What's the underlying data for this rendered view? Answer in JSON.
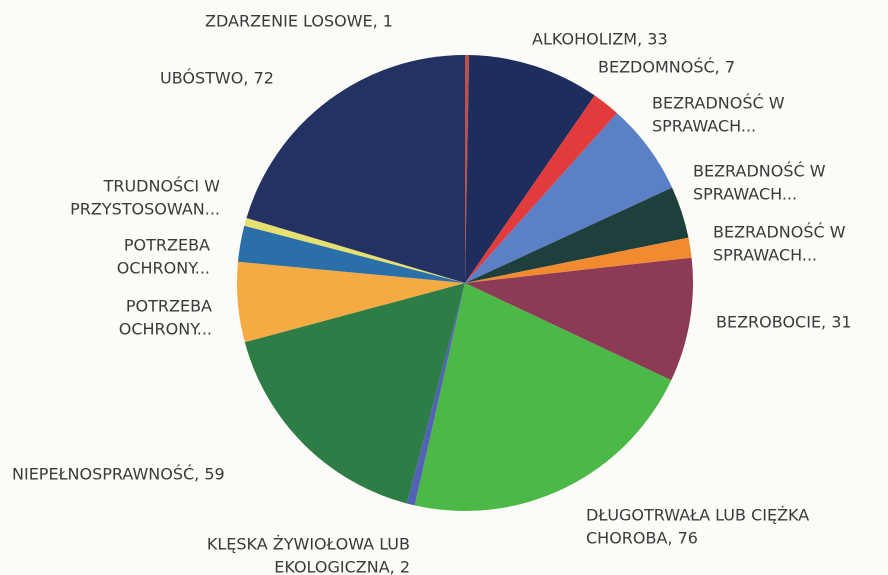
{
  "chart_data": {
    "type": "pie",
    "labels": [
      [
        "ZDARZENIE LOSOWE, 1"
      ],
      [
        "ALKOHOLIZM, 33"
      ],
      [
        "BEZDOMNOŚĆ, 7"
      ],
      [
        "BEZRADNOŚĆ W",
        "SPRAWACH..."
      ],
      [
        "BEZRADNOŚĆ W",
        "SPRAWACH..."
      ],
      [
        "BEZRADNOŚĆ W",
        "SPRAWACH..."
      ],
      [
        "BEZROBOCIE, 31"
      ],
      [
        "DŁUGOTRWAŁA LUB CIĘŻKA",
        "CHOROBA, 76"
      ],
      [
        "KLĘSKA ŻYWIOŁOWA LUB",
        "EKOLOGICZNA, 2"
      ],
      [
        "NIEPEŁNOSPRAWNOŚĆ, 59"
      ],
      [
        "POTRZEBA",
        "OCHRONY..."
      ],
      [
        "POTRZEBA",
        "OCHRONY..."
      ],
      [
        "TRUDNOŚCI W",
        "PRZYSTOSOWAN..."
      ],
      [
        "UBÓSTWO, 72"
      ]
    ],
    "values": [
      1,
      33,
      7,
      23,
      13,
      5,
      31,
      76,
      2,
      59,
      20,
      9,
      2,
      72
    ],
    "colors": [
      "#c0504d",
      "#1f2d5c",
      "#e23b3b",
      "#5b80c6",
      "#1f3f3c",
      "#f28b30",
      "#8c3a56",
      "#4cb848",
      "#5262b4",
      "#2e7d46",
      "#f5aa44",
      "#2a6fa8",
      "#e6e070",
      "#243163"
    ]
  }
}
